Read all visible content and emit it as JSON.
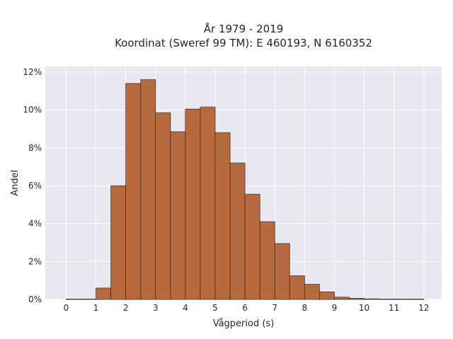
{
  "chart_data": {
    "type": "bar",
    "title_line1": "År 1979 - 2019",
    "title_line2": "Koordinat (Sweref 99 TM): E 460193, N 6160352",
    "xlabel": "Vågperiod (s)",
    "ylabel": "Andel",
    "bin_width": 0.5,
    "bin_starts": [
      0,
      0.5,
      1,
      1.5,
      2,
      2.5,
      3,
      3.5,
      4,
      4.5,
      5,
      5.5,
      6,
      6.5,
      7,
      7.5,
      8,
      8.5,
      9,
      9.5,
      10,
      10.5,
      11,
      11.5
    ],
    "values": [
      0.0,
      0.0,
      0.6,
      6.0,
      11.4,
      11.6,
      9.85,
      8.85,
      10.05,
      10.15,
      8.8,
      7.2,
      5.55,
      4.1,
      2.95,
      1.25,
      0.8,
      0.4,
      0.12,
      0.06,
      0.03,
      0.02,
      0.01,
      0.01
    ],
    "xlim": [
      -0.7,
      12.6
    ],
    "ylim": [
      0,
      12.3
    ],
    "x_ticks": [
      0,
      1,
      2,
      3,
      4,
      5,
      6,
      7,
      8,
      9,
      10,
      11,
      12
    ],
    "x_tick_labels": [
      "0",
      "1",
      "2",
      "3",
      "4",
      "5",
      "6",
      "7",
      "8",
      "9",
      "10",
      "11",
      "12"
    ],
    "y_ticks": [
      0,
      2,
      4,
      6,
      8,
      10,
      12
    ],
    "y_tick_labels": [
      "0%",
      "2%",
      "4%",
      "6%",
      "8%",
      "10%",
      "12%"
    ],
    "grid": true,
    "colors": {
      "bar_fill": "#b86a3f",
      "bar_edge": "#3a2418",
      "plot_background": "#e8e8f0",
      "grid": "#ffffff"
    }
  }
}
